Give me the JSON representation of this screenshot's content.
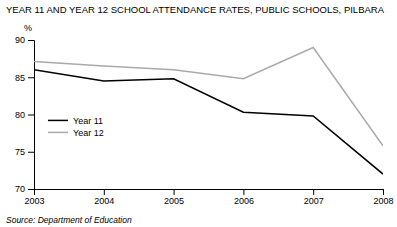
{
  "chart_data": {
    "type": "line",
    "title": "YEAR 11 AND YEAR 12 SCHOOL ATTENDANCE RATES, PUBLIC SCHOOLS, PILBARA",
    "ylabel": "%",
    "source": "Source: Department of Education",
    "x": [
      2003,
      2004,
      2005,
      2006,
      2007,
      2008
    ],
    "series": [
      {
        "name": "Year 11",
        "color": "#000000",
        "values": [
          86.0,
          84.5,
          84.8,
          80.3,
          79.8,
          72.0
        ]
      },
      {
        "name": "Year 12",
        "color": "#aaaaaa",
        "values": [
          87.1,
          86.5,
          86.0,
          84.8,
          89.0,
          75.8
        ]
      }
    ],
    "xlim": [
      2003,
      2008
    ],
    "xticks": [
      2003,
      2004,
      2005,
      2006,
      2007,
      2008
    ],
    "ylim": [
      70,
      90
    ],
    "yticks": [
      70,
      75,
      80,
      85,
      90
    ],
    "legend": "left"
  }
}
